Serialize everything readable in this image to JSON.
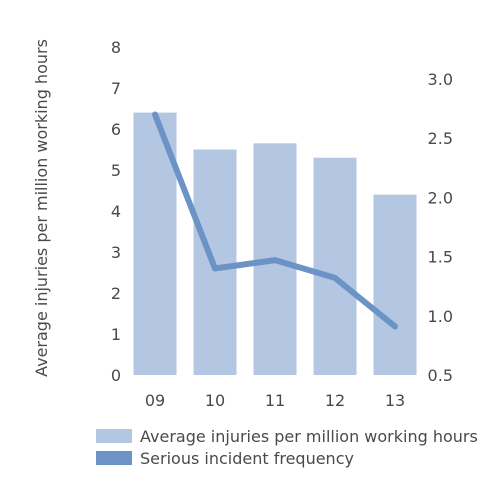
{
  "chart_data": {
    "type": "bar",
    "categories": [
      "09",
      "10",
      "11",
      "12",
      "13"
    ],
    "series": [
      {
        "name": "Average injuries per million working hours",
        "type": "bar",
        "axis": "left",
        "values": [
          6.4,
          5.5,
          5.65,
          5.3,
          4.4
        ]
      },
      {
        "name": "Serious incident frequency",
        "type": "line",
        "axis": "right",
        "values": [
          2.7,
          1.4,
          1.47,
          1.32,
          0.91
        ]
      }
    ],
    "ylabel": "Average injuries per million working hours",
    "ylim": [
      0,
      8
    ],
    "yticks": [
      "0",
      "1",
      "2",
      "3",
      "4",
      "5",
      "6",
      "7",
      "8"
    ],
    "y2lim": [
      0.5,
      3.0
    ],
    "y2ticks": [
      "0.5",
      "1.0",
      "1.5",
      "2.0",
      "2.5",
      "3.0"
    ],
    "grid": false,
    "legend": "bottom",
    "colors": {
      "bar": "#b3c6e2",
      "line": "#6b93c6",
      "text": "#4a4a4a"
    }
  }
}
